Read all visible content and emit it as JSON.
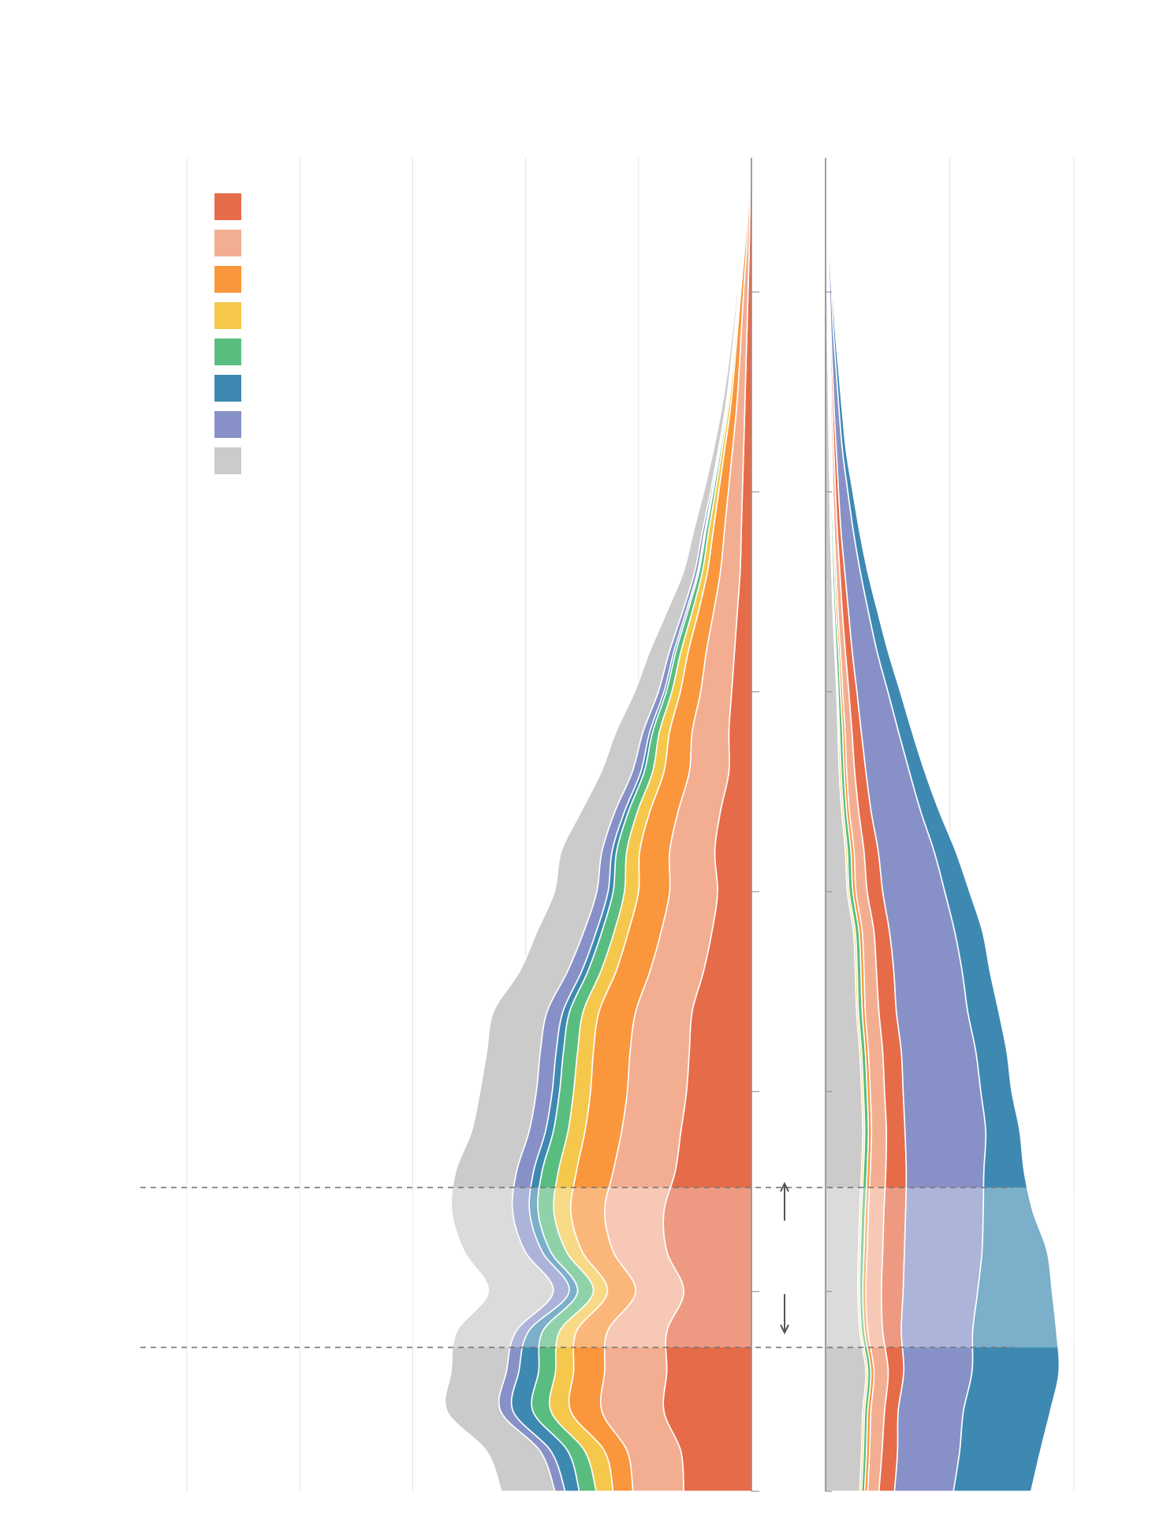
{
  "title": "",
  "legend": {
    "placement": "top-left",
    "items": [
      {
        "name": "",
        "color": "#E66B48"
      },
      {
        "name": "",
        "color": "#F3AE92"
      },
      {
        "name": "",
        "color": "#FA963C"
      },
      {
        "name": "",
        "color": "#F5C84C"
      },
      {
        "name": "",
        "color": "#5ABD80"
      },
      {
        "name": "",
        "color": "#3D89B1"
      },
      {
        "name": "",
        "color": "#8791C8"
      },
      {
        "name": "",
        "color": "#CBCBCB"
      }
    ]
  },
  "chart_data": {
    "type": "area",
    "description_note": "",
    "panels": [
      {
        "id": "left",
        "orientation": "horizontal-stacked-to-left",
        "xlabel": "",
        "ylabel": "",
        "xlim": [
          0,
          100
        ],
        "ylim": [
          0,
          66
        ],
        "grid": true,
        "series_order": [
          "s1",
          "s2",
          "s3",
          "s4",
          "s5",
          "s6",
          "s7",
          "s8"
        ],
        "y": [
          0,
          2,
          4,
          6,
          8,
          10,
          12,
          14,
          16,
          18,
          20,
          22,
          24,
          26,
          28,
          30,
          32,
          34,
          36,
          38,
          40,
          42,
          44,
          46,
          48,
          50,
          52,
          54,
          56,
          58,
          60,
          62,
          64,
          66
        ],
        "series": [
          {
            "key": "s8",
            "values": [
              9.5,
              9.5,
              9.5,
              9.8,
              10.5,
              11.5,
              10.8,
              10.8,
              10.8,
              10.2,
              10.0,
              9.5,
              9.5,
              8.5,
              8.3,
              7.5,
              7.2,
              6.0,
              5.5,
              4.8,
              4.2,
              3.5,
              2.8,
              2.0,
              1.6,
              1.2,
              0.9,
              0.7,
              0.5,
              0.35,
              0.25,
              0.15,
              0.1,
              0.05
            ]
          },
          {
            "key": "s7",
            "values": [
              1.8,
              1.9,
              2.2,
              2.2,
              2.2,
              2.8,
              3.0,
              3.0,
              3.0,
              2.9,
              2.8,
              2.8,
              2.8,
              2.5,
              2.2,
              2.0,
              1.8,
              1.7,
              1.5,
              1.2,
              1.0,
              0.8,
              0.6,
              0.5,
              0.4,
              0.3,
              0.2,
              0.15,
              0.1,
              0.08,
              0.06,
              0.04,
              0.03,
              0.02
            ]
          },
          {
            "key": "s6",
            "values": [
              2.5,
              3.0,
              3.5,
              3.5,
              2.5,
              1.5,
              1.5,
              1.5,
              1.5,
              1.4,
              1.3,
              1.3,
              1.2,
              1.1,
              1.0,
              0.9,
              0.8,
              0.7,
              0.6,
              0.5,
              0.4,
              0.35,
              0.3,
              0.25,
              0.2,
              0.15,
              0.12,
              0.1,
              0.08,
              0.06,
              0.04,
              0.03,
              0.02,
              0.01
            ]
          },
          {
            "key": "s5",
            "values": [
              3.0,
              3.0,
              3.2,
              3.0,
              3.0,
              2.8,
              2.8,
              2.8,
              2.9,
              2.6,
              2.5,
              2.5,
              2.4,
              2.3,
              2.2,
              2.0,
              1.8,
              1.6,
              1.5,
              1.2,
              1.0,
              0.9,
              0.8,
              0.6,
              0.5,
              0.4,
              0.3,
              0.25,
              0.2,
              0.15,
              0.1,
              0.08,
              0.05,
              0.03
            ]
          },
          {
            "key": "s4",
            "values": [
              3.0,
              3.5,
              3.5,
              3.2,
              3.0,
              2.5,
              2.8,
              3.0,
              3.2,
              3.0,
              3.0,
              2.8,
              2.8,
              2.7,
              2.5,
              2.5,
              2.3,
              2.2,
              2.0,
              1.8,
              1.5,
              1.3,
              1.1,
              0.9,
              0.8,
              0.6,
              0.5,
              0.4,
              0.3,
              0.25,
              0.2,
              0.15,
              0.1,
              0.05
            ]
          },
          {
            "key": "s3",
            "values": [
              3.5,
              4.0,
              5.5,
              5.5,
              5.5,
              5.0,
              5.5,
              6.0,
              6.5,
              6.5,
              6.5,
              6.5,
              6.5,
              6.0,
              5.8,
              5.5,
              5.3,
              5.0,
              4.5,
              4.0,
              3.6,
              3.2,
              2.7,
              2.3,
              2.0,
              1.7,
              1.4,
              1.1,
              0.9,
              0.7,
              0.5,
              0.35,
              0.2,
              0.1
            ]
          },
          {
            "key": "s2",
            "values": [
              9.0,
              9.5,
              11.0,
              11.0,
              10.5,
              8.5,
              9.5,
              10.5,
              11.0,
              10.5,
              10.5,
              10.5,
              10.0,
              9.5,
              9.0,
              8.5,
              8.0,
              7.5,
              7.0,
              6.5,
              5.5,
              5.0,
              4.2,
              3.5,
              3.0,
              2.5,
              2.0,
              1.5,
              1.2,
              1.0,
              0.8,
              0.5,
              0.3,
              0.15
            ]
          },
          {
            "key": "s1",
            "values": [
              12.0,
              12.5,
              15.5,
              15.0,
              15.0,
              12.0,
              15.0,
              15.5,
              13.5,
              12.5,
              11.5,
              11.0,
              10.5,
              8.5,
              7.0,
              6.0,
              6.5,
              5.5,
              4.0,
              4.0,
              3.5,
              3.0,
              2.5,
              2.0,
              1.8,
              1.6,
              1.4,
              1.2,
              1.0,
              0.8,
              0.6,
              0.4,
              0.3,
              0.2
            ]
          }
        ]
      },
      {
        "id": "right",
        "orientation": "horizontal-stacked-to-right",
        "xlabel": "",
        "ylabel": "",
        "xlim": [
          0,
          40
        ],
        "ylim": [
          0,
          66
        ],
        "grid": true,
        "series_order": [
          "s8",
          "s4",
          "s5",
          "s3",
          "s2",
          "s1",
          "s7",
          "s6"
        ],
        "y": [
          0,
          2,
          4,
          6,
          8,
          10,
          12,
          14,
          16,
          18,
          20,
          22,
          24,
          26,
          28,
          30,
          32,
          34,
          36,
          38,
          40,
          42,
          44,
          46,
          48,
          50,
          52,
          54,
          56,
          58,
          60,
          62,
          64,
          66
        ],
        "series": [
          {
            "key": "s8",
            "values": [
              5.5,
              5.8,
              6.0,
              6.5,
              5.5,
              5.2,
              5.3,
              5.5,
              5.8,
              6.0,
              5.8,
              5.5,
              5.0,
              4.8,
              4.5,
              3.5,
              3.2,
              2.6,
              2.2,
              2.0,
              1.8,
              1.5,
              1.2,
              1.0,
              0.8,
              0.7,
              0.6,
              0.5,
              0.4,
              0.3,
              0.25,
              0.2,
              0.15,
              0.1
            ]
          },
          {
            "key": "s4",
            "values": [
              0.3,
              0.3,
              0.3,
              0.3,
              0.3,
              0.3,
              0.3,
              0.3,
              0.3,
              0.3,
              0.3,
              0.3,
              0.3,
              0.3,
              0.3,
              0.3,
              0.3,
              0.3,
              0.3,
              0.25,
              0.2,
              0.2,
              0.2,
              0.15,
              0.15,
              0.1,
              0.1,
              0.1,
              0.08,
              0.06,
              0.05,
              0.04,
              0.03,
              0.02
            ]
          },
          {
            "key": "s5",
            "values": [
              0.5,
              0.5,
              0.5,
              0.5,
              0.5,
              0.5,
              0.6,
              0.6,
              0.6,
              0.6,
              0.6,
              0.6,
              0.6,
              0.6,
              0.6,
              0.6,
              0.6,
              0.5,
              0.5,
              0.5,
              0.4,
              0.4,
              0.3,
              0.3,
              0.25,
              0.2,
              0.2,
              0.15,
              0.1,
              0.08,
              0.06,
              0.05,
              0.03,
              0.02
            ]
          },
          {
            "key": "s3",
            "values": [
              0.5,
              0.5,
              0.5,
              0.5,
              0.5,
              0.5,
              0.5,
              0.5,
              0.5,
              0.5,
              0.5,
              0.5,
              0.5,
              0.5,
              0.5,
              0.5,
              0.5,
              0.45,
              0.4,
              0.4,
              0.35,
              0.3,
              0.3,
              0.25,
              0.2,
              0.2,
              0.15,
              0.1,
              0.1,
              0.08,
              0.05,
              0.04,
              0.03,
              0.02
            ]
          },
          {
            "key": "s2",
            "values": [
              1.8,
              2.0,
              2.2,
              2.3,
              2.4,
              2.5,
              2.5,
              2.5,
              2.5,
              2.4,
              2.3,
              2.3,
              2.2,
              2.0,
              1.9,
              1.8,
              1.6,
              1.5,
              1.3,
              1.1,
              1.0,
              0.8,
              0.7,
              0.6,
              0.5,
              0.4,
              0.3,
              0.25,
              0.2,
              0.15,
              0.1,
              0.08,
              0.05,
              0.03
            ]
          },
          {
            "key": "s1",
            "values": [
              2.5,
              2.5,
              2.2,
              2.5,
              3.0,
              3.5,
              3.5,
              3.5,
              3.3,
              3.0,
              3.0,
              3.0,
              2.8,
              2.8,
              2.5,
              2.5,
              2.3,
              2.0,
              1.8,
              1.5,
              1.3,
              1.1,
              1.0,
              0.8,
              0.6,
              0.5,
              0.4,
              0.3,
              0.25,
              0.2,
              0.15,
              0.1,
              0.08,
              0.05
            ]
          },
          {
            "key": "s7",
            "values": [
              9.5,
              10.0,
              10.5,
              11.0,
              11.5,
              12.0,
              12.5,
              12.5,
              12.5,
              13.0,
              12.5,
              12.0,
              11.5,
              11.0,
              10.5,
              10.0,
              9.0,
              8.0,
              7.0,
              6.0,
              5.0,
              4.0,
              3.2,
              2.5,
              2.0,
              1.5,
              1.0,
              0.8,
              0.6,
              0.4,
              0.3,
              0.2,
              0.1,
              0.05
            ]
          },
          {
            "key": "s6",
            "values": [
              12.5,
              13.0,
              14.0,
              14.0,
              13.5,
              12.0,
              10.5,
              8.0,
              6.5,
              5.5,
              5.0,
              5.0,
              5.0,
              4.5,
              4.5,
              4.0,
              3.5,
              3.0,
              2.5,
              2.2,
              2.0,
              1.8,
              1.5,
              1.2,
              1.0,
              0.8,
              0.6,
              0.5,
              0.4,
              0.3,
              0.2,
              0.15,
              0.1,
              0.05
            ]
          }
        ]
      }
    ],
    "highlight_band": {
      "y_from": 7.2,
      "y_to": 15.2
    },
    "annotations": [
      {
        "kind": "arrow-up",
        "text": ""
      },
      {
        "kind": "arrow-down",
        "text": ""
      }
    ]
  }
}
